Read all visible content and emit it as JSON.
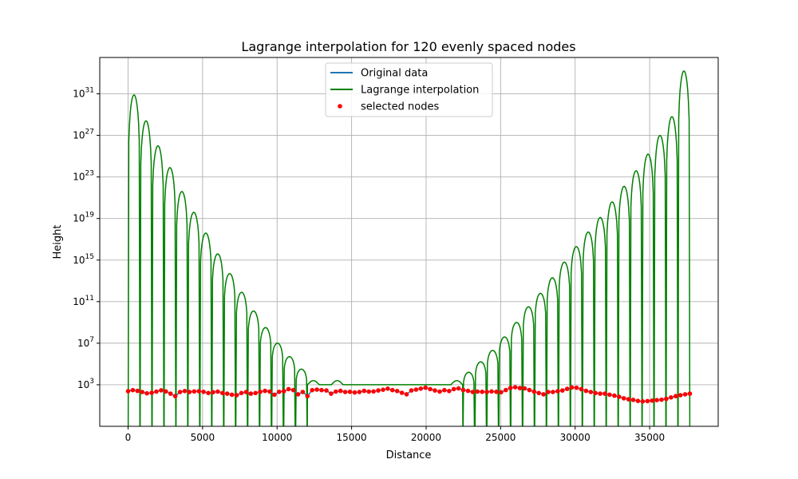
{
  "chart_data": {
    "type": "line",
    "title": "Lagrange interpolation for 120 evenly spaced nodes",
    "xlabel": "Distance",
    "ylabel": "Height",
    "xlim": [
      -1900,
      39600
    ],
    "ylim_log10": [
      -1,
      34.5
    ],
    "yscale": "log",
    "grid": true,
    "legend_position": "top-center",
    "x_ticks": [
      0,
      5000,
      10000,
      15000,
      20000,
      25000,
      30000,
      35000
    ],
    "y_tick_exponents": [
      3,
      7,
      11,
      15,
      19,
      23,
      27,
      31
    ],
    "y_tick_base": "10",
    "series": [
      {
        "name": "Original data",
        "color": "#1f77b4",
        "kind": "line"
      },
      {
        "name": "Lagrange interpolation",
        "color": "#008000",
        "kind": "line"
      },
      {
        "name": "selected nodes",
        "color": "#ff0000",
        "kind": "scatter"
      }
    ],
    "node_x_start": 0,
    "node_x_end": 37700,
    "node_count": 120,
    "nodes_y": [
      240,
      300,
      260,
      200,
      150,
      170,
      220,
      290,
      230,
      140,
      80,
      200,
      250,
      200,
      230,
      240,
      210,
      160,
      190,
      220,
      160,
      140,
      110,
      100,
      160,
      200,
      140,
      160,
      210,
      260,
      220,
      110,
      210,
      240,
      380,
      300,
      120,
      200,
      80,
      300,
      340,
      300,
      280,
      140,
      220,
      260,
      200,
      210,
      180,
      200,
      260,
      220,
      230,
      280,
      330,
      420,
      300,
      250,
      170,
      120,
      280,
      340,
      420,
      520,
      380,
      280,
      220,
      300,
      250,
      380,
      450,
      310,
      260,
      200,
      220,
      210,
      200,
      230,
      210,
      190,
      310,
      500,
      580,
      480,
      450,
      310,
      220,
      160,
      120,
      200,
      200,
      240,
      280,
      400,
      550,
      510,
      380,
      260,
      200,
      160,
      140,
      140,
      110,
      90,
      70,
      50,
      40,
      35,
      28,
      25,
      27,
      30,
      33,
      36,
      44,
      60,
      80,
      100,
      120,
      140
    ],
    "interpolation_peak_log10": [
      30.9,
      28.4,
      26.0,
      23.9,
      21.6,
      19.6,
      17.6,
      15.6,
      13.7,
      11.9,
      10.1,
      8.5,
      7.0,
      5.7,
      4.5,
      3.5,
      3.0,
      3.5,
      3.0,
      3.0,
      3.0,
      3.0,
      3.0,
      3.0,
      3.0,
      3.0,
      3.0,
      3.5,
      4.2,
      5.2,
      6.3,
      7.6,
      9.0,
      10.5,
      11.8,
      13.3,
      14.8,
      16.3,
      17.7,
      19.1,
      20.6,
      22.1,
      23.6,
      25.2,
      27.0,
      28.8,
      33.2
    ]
  }
}
